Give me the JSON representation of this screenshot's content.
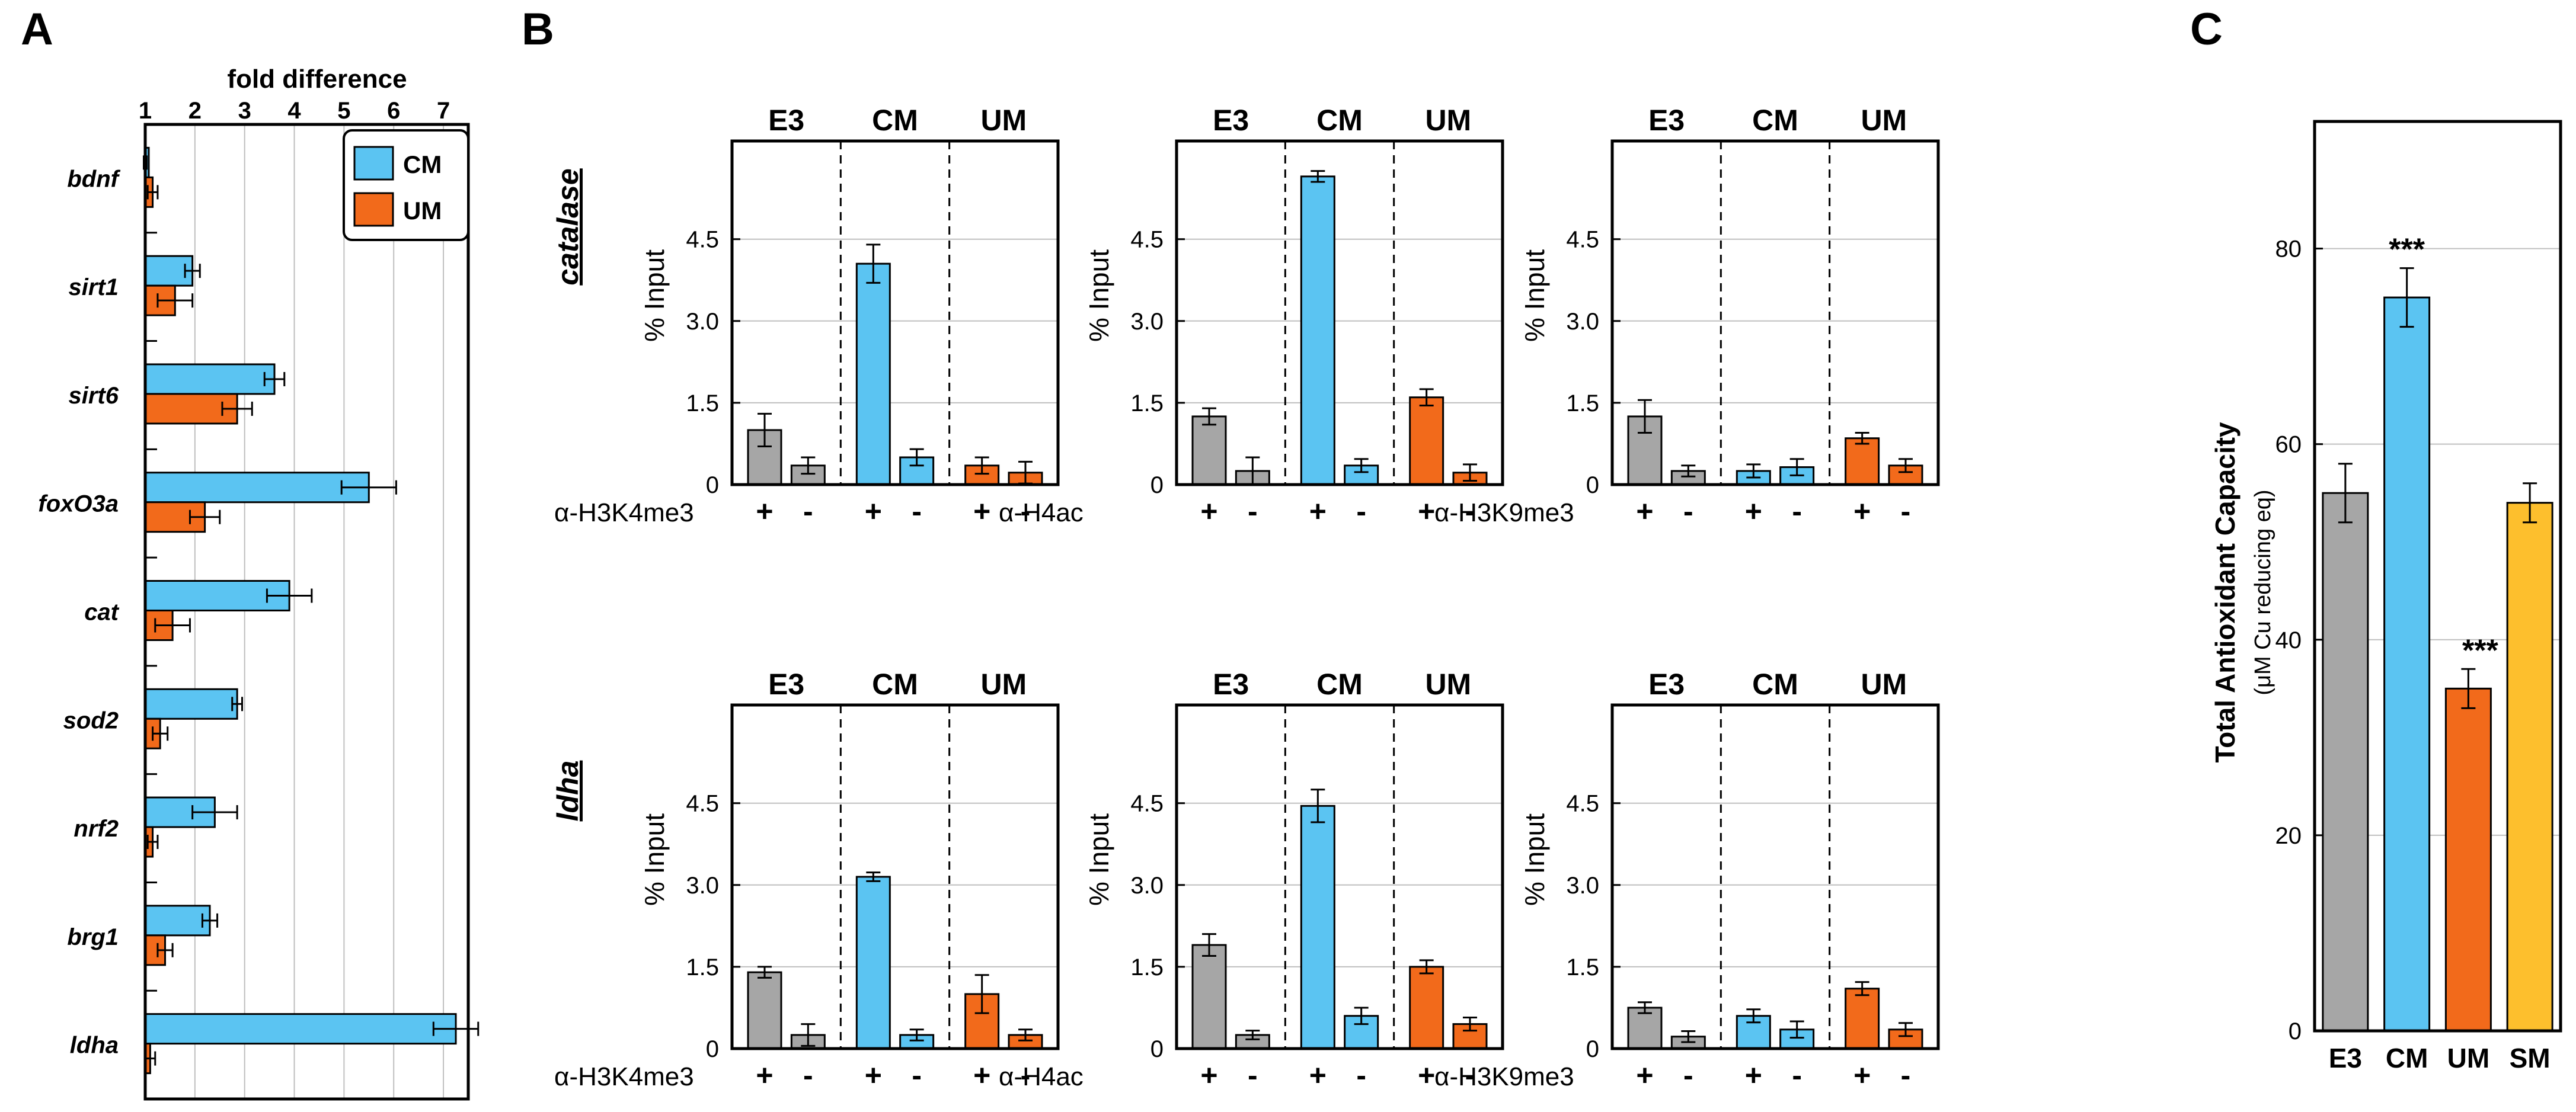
{
  "figure": {
    "colors": {
      "E3": "#a6a6a6",
      "CM": "#5bc4f2",
      "UM": "#f26a1b",
      "SM": "#fdbf2d",
      "grid": "#bfbfbf",
      "axis": "#000000"
    },
    "chart_data": [
      {
        "panel": "A",
        "type": "bar",
        "orientation": "horizontal",
        "title": "fold difference",
        "xlim": [
          1,
          7.5
        ],
        "x_ticks": [
          "1",
          "2",
          "3",
          "4",
          "5",
          "6",
          "7"
        ],
        "categories": [
          "bdnf",
          "sirt1",
          "sirt6",
          "foxO3a",
          "cat",
          "sod2",
          "nrf2",
          "brg1",
          "ldha"
        ],
        "series": [
          {
            "name": "CM",
            "values": [
              1.0,
              1.95,
              3.6,
              5.5,
              3.9,
              2.85,
              2.4,
              2.3,
              7.25
            ],
            "errors": [
              0.03,
              0.15,
              0.2,
              0.55,
              0.45,
              0.1,
              0.45,
              0.15,
              0.45
            ]
          },
          {
            "name": "UM",
            "values": [
              1.15,
              1.6,
              2.85,
              2.2,
              1.55,
              1.3,
              1.15,
              1.4,
              1.1
            ],
            "errors": [
              0.1,
              0.35,
              0.3,
              0.3,
              0.35,
              0.15,
              0.1,
              0.15,
              0.1
            ]
          }
        ],
        "legend": [
          "CM",
          "UM"
        ],
        "legend_position": "top-right"
      },
      {
        "panel": "B",
        "type": "bar",
        "ylabel": "% Input",
        "ylim": [
          0,
          6.3
        ],
        "y_ticks": [
          "0",
          "1.5",
          "3.0",
          "4.5"
        ],
        "groups": [
          "E3",
          "CM",
          "UM"
        ],
        "condition_labels": [
          "+",
          "-"
        ],
        "rows": [
          {
            "gene": "catalase",
            "subplots": [
              {
                "antibody": "α-H3K4me3",
                "values": [
                  [
                    1.0,
                    0.35
                  ],
                  [
                    4.05,
                    0.5
                  ],
                  [
                    0.35,
                    0.22
                  ]
                ],
                "errors": [
                  [
                    0.3,
                    0.15
                  ],
                  [
                    0.35,
                    0.15
                  ],
                  [
                    0.15,
                    0.2
                  ]
                ]
              },
              {
                "antibody": "α-H4ac",
                "values": [
                  [
                    1.25,
                    0.25
                  ],
                  [
                    5.65,
                    0.35
                  ],
                  [
                    1.6,
                    0.22
                  ]
                ],
                "errors": [
                  [
                    0.15,
                    0.25
                  ],
                  [
                    0.1,
                    0.12
                  ],
                  [
                    0.15,
                    0.15
                  ]
                ]
              },
              {
                "antibody": "α-H3K9me3",
                "values": [
                  [
                    1.25,
                    0.25
                  ],
                  [
                    0.25,
                    0.32
                  ],
                  [
                    0.85,
                    0.35
                  ]
                ],
                "errors": [
                  [
                    0.3,
                    0.1
                  ],
                  [
                    0.12,
                    0.15
                  ],
                  [
                    0.1,
                    0.12
                  ]
                ]
              }
            ]
          },
          {
            "gene": "ldha",
            "subplots": [
              {
                "antibody": "α-H3K4me3",
                "values": [
                  [
                    1.4,
                    0.25
                  ],
                  [
                    3.15,
                    0.25
                  ],
                  [
                    1.0,
                    0.25
                  ]
                ],
                "errors": [
                  [
                    0.1,
                    0.2
                  ],
                  [
                    0.08,
                    0.1
                  ],
                  [
                    0.35,
                    0.1
                  ]
                ]
              },
              {
                "antibody": "α-H4ac",
                "values": [
                  [
                    1.9,
                    0.25
                  ],
                  [
                    4.45,
                    0.6
                  ],
                  [
                    1.5,
                    0.45
                  ]
                ],
                "errors": [
                  [
                    0.2,
                    0.08
                  ],
                  [
                    0.3,
                    0.15
                  ],
                  [
                    0.12,
                    0.12
                  ]
                ]
              },
              {
                "antibody": "α-H3K9me3",
                "values": [
                  [
                    0.75,
                    0.22
                  ],
                  [
                    0.6,
                    0.35
                  ],
                  [
                    1.1,
                    0.35
                  ]
                ],
                "errors": [
                  [
                    0.1,
                    0.1
                  ],
                  [
                    0.12,
                    0.15
                  ],
                  [
                    0.12,
                    0.12
                  ]
                ]
              }
            ]
          }
        ]
      },
      {
        "panel": "C",
        "type": "bar",
        "ylabel": "Total Antioxidant Capacity",
        "ylabel_sub": "(μM Cu reducing eq)",
        "ylim": [
          0,
          93
        ],
        "y_ticks": [
          "0",
          "20",
          "40",
          "60",
          "80"
        ],
        "categories": [
          "E3",
          "CM",
          "UM",
          "SM"
        ],
        "values": [
          55,
          75,
          35,
          54
        ],
        "errors": [
          3,
          3,
          2,
          2
        ],
        "annotations": [
          "",
          "***",
          "***",
          ""
        ]
      }
    ],
    "panel_labels": [
      "A",
      "B",
      "C"
    ]
  }
}
